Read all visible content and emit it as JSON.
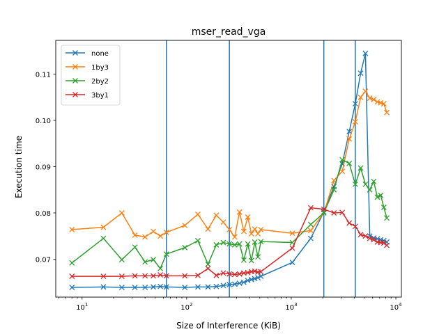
{
  "chart_data": {
    "type": "line",
    "title": "mser_read_vga",
    "xlabel": "Size of Interference (KiB)",
    "ylabel": "Execution time",
    "xscale": "log",
    "xlim": [
      5.6,
      11300
    ],
    "ylim": [
      0.0618,
      0.1173
    ],
    "xticks": [
      {
        "value": 10,
        "base": "10",
        "exp": "1"
      },
      {
        "value": 100,
        "base": "10",
        "exp": "2"
      },
      {
        "value": 1000,
        "base": "10",
        "exp": "3"
      },
      {
        "value": 10000,
        "base": "10",
        "exp": "4"
      }
    ],
    "yticks": [
      0.07,
      0.08,
      0.09,
      0.1,
      0.11
    ],
    "ytick_labels": [
      "0.07",
      "0.08",
      "0.09",
      "0.10",
      "0.11"
    ],
    "grid": false,
    "legend_position": "top-left",
    "vlines": {
      "x": [
        64,
        256,
        2048,
        4096
      ],
      "color": "#1f77b4"
    },
    "series": [
      {
        "name": "none",
        "color": "#1f77b4",
        "marker": "x",
        "x": [
          8,
          16,
          24,
          32,
          40,
          48,
          56,
          64,
          96,
          128,
          160,
          192,
          224,
          256,
          288,
          320,
          352,
          384,
          416,
          448,
          480,
          512,
          1024,
          1536,
          2048,
          2560,
          3072,
          3584,
          4096,
          4608,
          5120,
          5632,
          6144,
          6656,
          7168,
          7680,
          8192
        ],
        "y": [
          0.0639,
          0.064,
          0.0639,
          0.0639,
          0.0639,
          0.064,
          0.0641,
          0.064,
          0.0639,
          0.064,
          0.064,
          0.0641,
          0.0643,
          0.0645,
          0.0646,
          0.0648,
          0.065,
          0.0654,
          0.0656,
          0.0658,
          0.066,
          0.0663,
          0.0693,
          0.0745,
          0.0802,
          0.0857,
          0.0906,
          0.0976,
          0.1036,
          0.1102,
          0.1145,
          0.075,
          0.0746,
          0.0744,
          0.0742,
          0.074,
          0.0737
        ]
      },
      {
        "name": "1by3",
        "color": "#ff7f0e",
        "marker": "x",
        "x": [
          8,
          16,
          24,
          32,
          40,
          48,
          56,
          64,
          96,
          128,
          160,
          192,
          224,
          256,
          288,
          320,
          352,
          384,
          416,
          448,
          480,
          512,
          1024,
          1536,
          2048,
          2560,
          3072,
          3584,
          4096,
          4608,
          5120,
          5632,
          6144,
          6656,
          7168,
          7680,
          8192
        ],
        "y": [
          0.0764,
          0.0769,
          0.08,
          0.0752,
          0.0748,
          0.076,
          0.075,
          0.0758,
          0.0773,
          0.0797,
          0.0765,
          0.0795,
          0.078,
          0.0764,
          0.0748,
          0.0802,
          0.076,
          0.0791,
          0.0755,
          0.0765,
          0.0755,
          0.0764,
          0.0756,
          0.0762,
          0.08,
          0.087,
          0.089,
          0.096,
          0.0997,
          0.105,
          0.1063,
          0.1048,
          0.1045,
          0.104,
          0.1038,
          0.1036,
          0.1017
        ]
      },
      {
        "name": "2by2",
        "color": "#2ca02c",
        "marker": "x",
        "x": [
          8,
          16,
          24,
          32,
          40,
          48,
          56,
          64,
          96,
          128,
          160,
          192,
          224,
          256,
          288,
          320,
          352,
          384,
          416,
          448,
          480,
          512,
          1024,
          1536,
          2048,
          2560,
          3072,
          3584,
          4096,
          4608,
          5120,
          5632,
          6144,
          6656,
          7168,
          7680,
          8192
        ],
        "y": [
          0.0692,
          0.0745,
          0.0699,
          0.0726,
          0.0694,
          0.0699,
          0.068,
          0.0711,
          0.0725,
          0.074,
          0.0689,
          0.0731,
          0.0736,
          0.0733,
          0.0731,
          0.0733,
          0.0698,
          0.0733,
          0.0697,
          0.0737,
          0.0705,
          0.0738,
          0.0736,
          0.0775,
          0.08,
          0.085,
          0.0915,
          0.0907,
          0.0862,
          0.0897,
          0.0862,
          0.085,
          0.0868,
          0.0834,
          0.0838,
          0.0812,
          0.0789
        ]
      },
      {
        "name": "3by1",
        "color": "#d62728",
        "marker": "x",
        "x": [
          8,
          16,
          24,
          32,
          40,
          48,
          56,
          64,
          96,
          128,
          160,
          192,
          224,
          256,
          288,
          320,
          352,
          384,
          416,
          448,
          480,
          512,
          1024,
          1536,
          2048,
          2560,
          3072,
          3584,
          4096,
          4608,
          5120,
          5632,
          6144,
          6656,
          7168,
          7680,
          8192
        ],
        "y": [
          0.0663,
          0.0663,
          0.0663,
          0.0664,
          0.0664,
          0.0664,
          0.0666,
          0.0664,
          0.0664,
          0.0665,
          0.068,
          0.0665,
          0.067,
          0.0668,
          0.0667,
          0.0668,
          0.067,
          0.0671,
          0.0673,
          0.0674,
          0.0672,
          0.0673,
          0.0724,
          0.0811,
          0.0808,
          0.08,
          0.0801,
          0.0778,
          0.0771,
          0.0753,
          0.075,
          0.0745,
          0.0742,
          0.0737,
          0.0736,
          0.0735,
          0.073
        ]
      }
    ]
  }
}
